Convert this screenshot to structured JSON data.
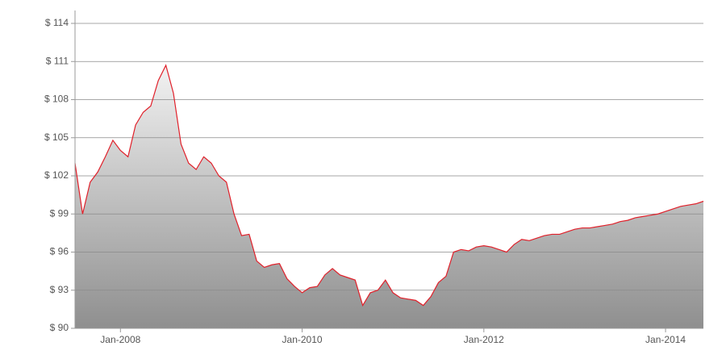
{
  "chart_data": {
    "type": "area",
    "x": [
      "2007-07",
      "2007-08",
      "2007-09",
      "2007-10",
      "2007-11",
      "2007-12",
      "2008-01",
      "2008-02",
      "2008-03",
      "2008-04",
      "2008-05",
      "2008-06",
      "2008-07",
      "2008-08",
      "2008-09",
      "2008-10",
      "2008-11",
      "2008-12",
      "2009-01",
      "2009-02",
      "2009-03",
      "2009-04",
      "2009-05",
      "2009-06",
      "2009-07",
      "2009-08",
      "2009-09",
      "2009-10",
      "2009-11",
      "2009-12",
      "2010-01",
      "2010-02",
      "2010-03",
      "2010-04",
      "2010-05",
      "2010-06",
      "2010-07",
      "2010-08",
      "2010-09",
      "2010-10",
      "2010-11",
      "2010-12",
      "2011-01",
      "2011-02",
      "2011-03",
      "2011-04",
      "2011-05",
      "2011-06",
      "2011-07",
      "2011-08",
      "2011-09",
      "2011-10",
      "2011-11",
      "2011-12",
      "2012-01",
      "2012-02",
      "2012-03",
      "2012-04",
      "2012-05",
      "2012-06",
      "2012-07",
      "2012-08",
      "2012-09",
      "2012-10",
      "2012-11",
      "2012-12",
      "2013-01",
      "2013-02",
      "2013-03",
      "2013-04",
      "2013-05",
      "2013-06",
      "2013-07",
      "2013-08",
      "2013-09",
      "2013-10",
      "2013-11",
      "2013-12",
      "2014-01",
      "2014-02",
      "2014-03",
      "2014-04",
      "2014-05",
      "2014-06"
    ],
    "series": [
      {
        "color": "#e0202a",
        "values": [
          103,
          99,
          101.5,
          102.3,
          103.5,
          104.8,
          104,
          103.5,
          106,
          107,
          107.5,
          109.5,
          110.7,
          108.5,
          104.5,
          103,
          102.5,
          103.5,
          103,
          102,
          101.5,
          99,
          97.3,
          97.4,
          95.3,
          94.8,
          95,
          95.1,
          93.9,
          93.3,
          92.8,
          93.2,
          93.3,
          94.2,
          94.7,
          94.2,
          94,
          93.8,
          91.8,
          92.8,
          93,
          93.8,
          92.8,
          92.4,
          92.3,
          92.2,
          91.8,
          92.5,
          93.6,
          94.1,
          96,
          96.2,
          96.1,
          96.4,
          96.5,
          96.4,
          96.2,
          96,
          96.6,
          97,
          96.9,
          97.1,
          97.3,
          97.4,
          97.4,
          97.6,
          97.8,
          97.9,
          97.9,
          98,
          98.1,
          98.2,
          98.4,
          98.5,
          98.7,
          98.8,
          98.9,
          99,
          99.2,
          99.4,
          99.6,
          99.7,
          99.8,
          100
        ]
      }
    ],
    "xlim": [
      "2007-07",
      "2014-06"
    ],
    "xticks": [
      {
        "value": "2008-01",
        "label": "Jan-2008"
      },
      {
        "value": "2010-01",
        "label": "Jan-2010"
      },
      {
        "value": "2012-01",
        "label": "Jan-2012"
      },
      {
        "value": "2014-01",
        "label": "Jan-2014"
      }
    ],
    "ylim": [
      90,
      114
    ],
    "yticks": [
      {
        "value": 90,
        "label": "$ 90"
      },
      {
        "value": 93,
        "label": "$ 93"
      },
      {
        "value": 96,
        "label": "$ 96"
      },
      {
        "value": 99,
        "label": "$ 99"
      },
      {
        "value": 102,
        "label": "$ 102"
      },
      {
        "value": 105,
        "label": "$ 105"
      },
      {
        "value": 108,
        "label": "$ 108"
      },
      {
        "value": 111,
        "label": "$ 111"
      },
      {
        "value": 114,
        "label": "$ 114"
      }
    ],
    "grid": true
  }
}
